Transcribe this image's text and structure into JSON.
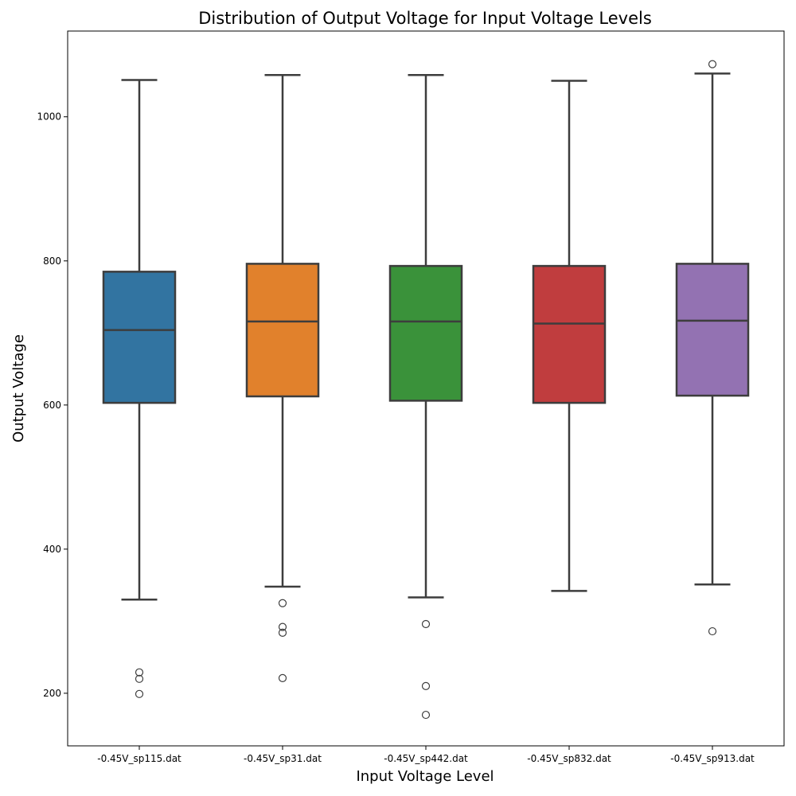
{
  "chart_data": {
    "type": "box",
    "title": "Distribution of Output Voltage for Input Voltage Levels",
    "xlabel": "Input Voltage Level",
    "ylabel": "Output Voltage",
    "ylim": [
      127,
      1119
    ],
    "yticks": [
      200,
      400,
      600,
      800,
      1000
    ],
    "grid": false,
    "categories": [
      "-0.45V_sp115.dat",
      "-0.45V_sp31.dat",
      "-0.45V_sp442.dat",
      "-0.45V_sp832.dat",
      "-0.45V_sp913.dat"
    ],
    "colors": [
      "#3274a1",
      "#e1812c",
      "#3a923a",
      "#c03d3e",
      "#9372b2"
    ],
    "edge_color": "#3d3d3d",
    "boxes": [
      {
        "whisker_low": 330,
        "q1": 603,
        "median": 704,
        "q3": 785,
        "whisker_high": 1051,
        "outliers": [
          229,
          220,
          199
        ]
      },
      {
        "whisker_low": 348,
        "q1": 612,
        "median": 716,
        "q3": 796,
        "whisker_high": 1058,
        "outliers": [
          325,
          292,
          284,
          221
        ]
      },
      {
        "whisker_low": 333,
        "q1": 606,
        "median": 716,
        "q3": 793,
        "whisker_high": 1058,
        "outliers": [
          296,
          210,
          170
        ]
      },
      {
        "whisker_low": 342,
        "q1": 603,
        "median": 713,
        "q3": 793,
        "whisker_high": 1050,
        "outliers": []
      },
      {
        "whisker_low": 351,
        "q1": 613,
        "median": 717,
        "q3": 796,
        "whisker_high": 1060,
        "outliers": [
          286,
          1073
        ]
      }
    ]
  }
}
